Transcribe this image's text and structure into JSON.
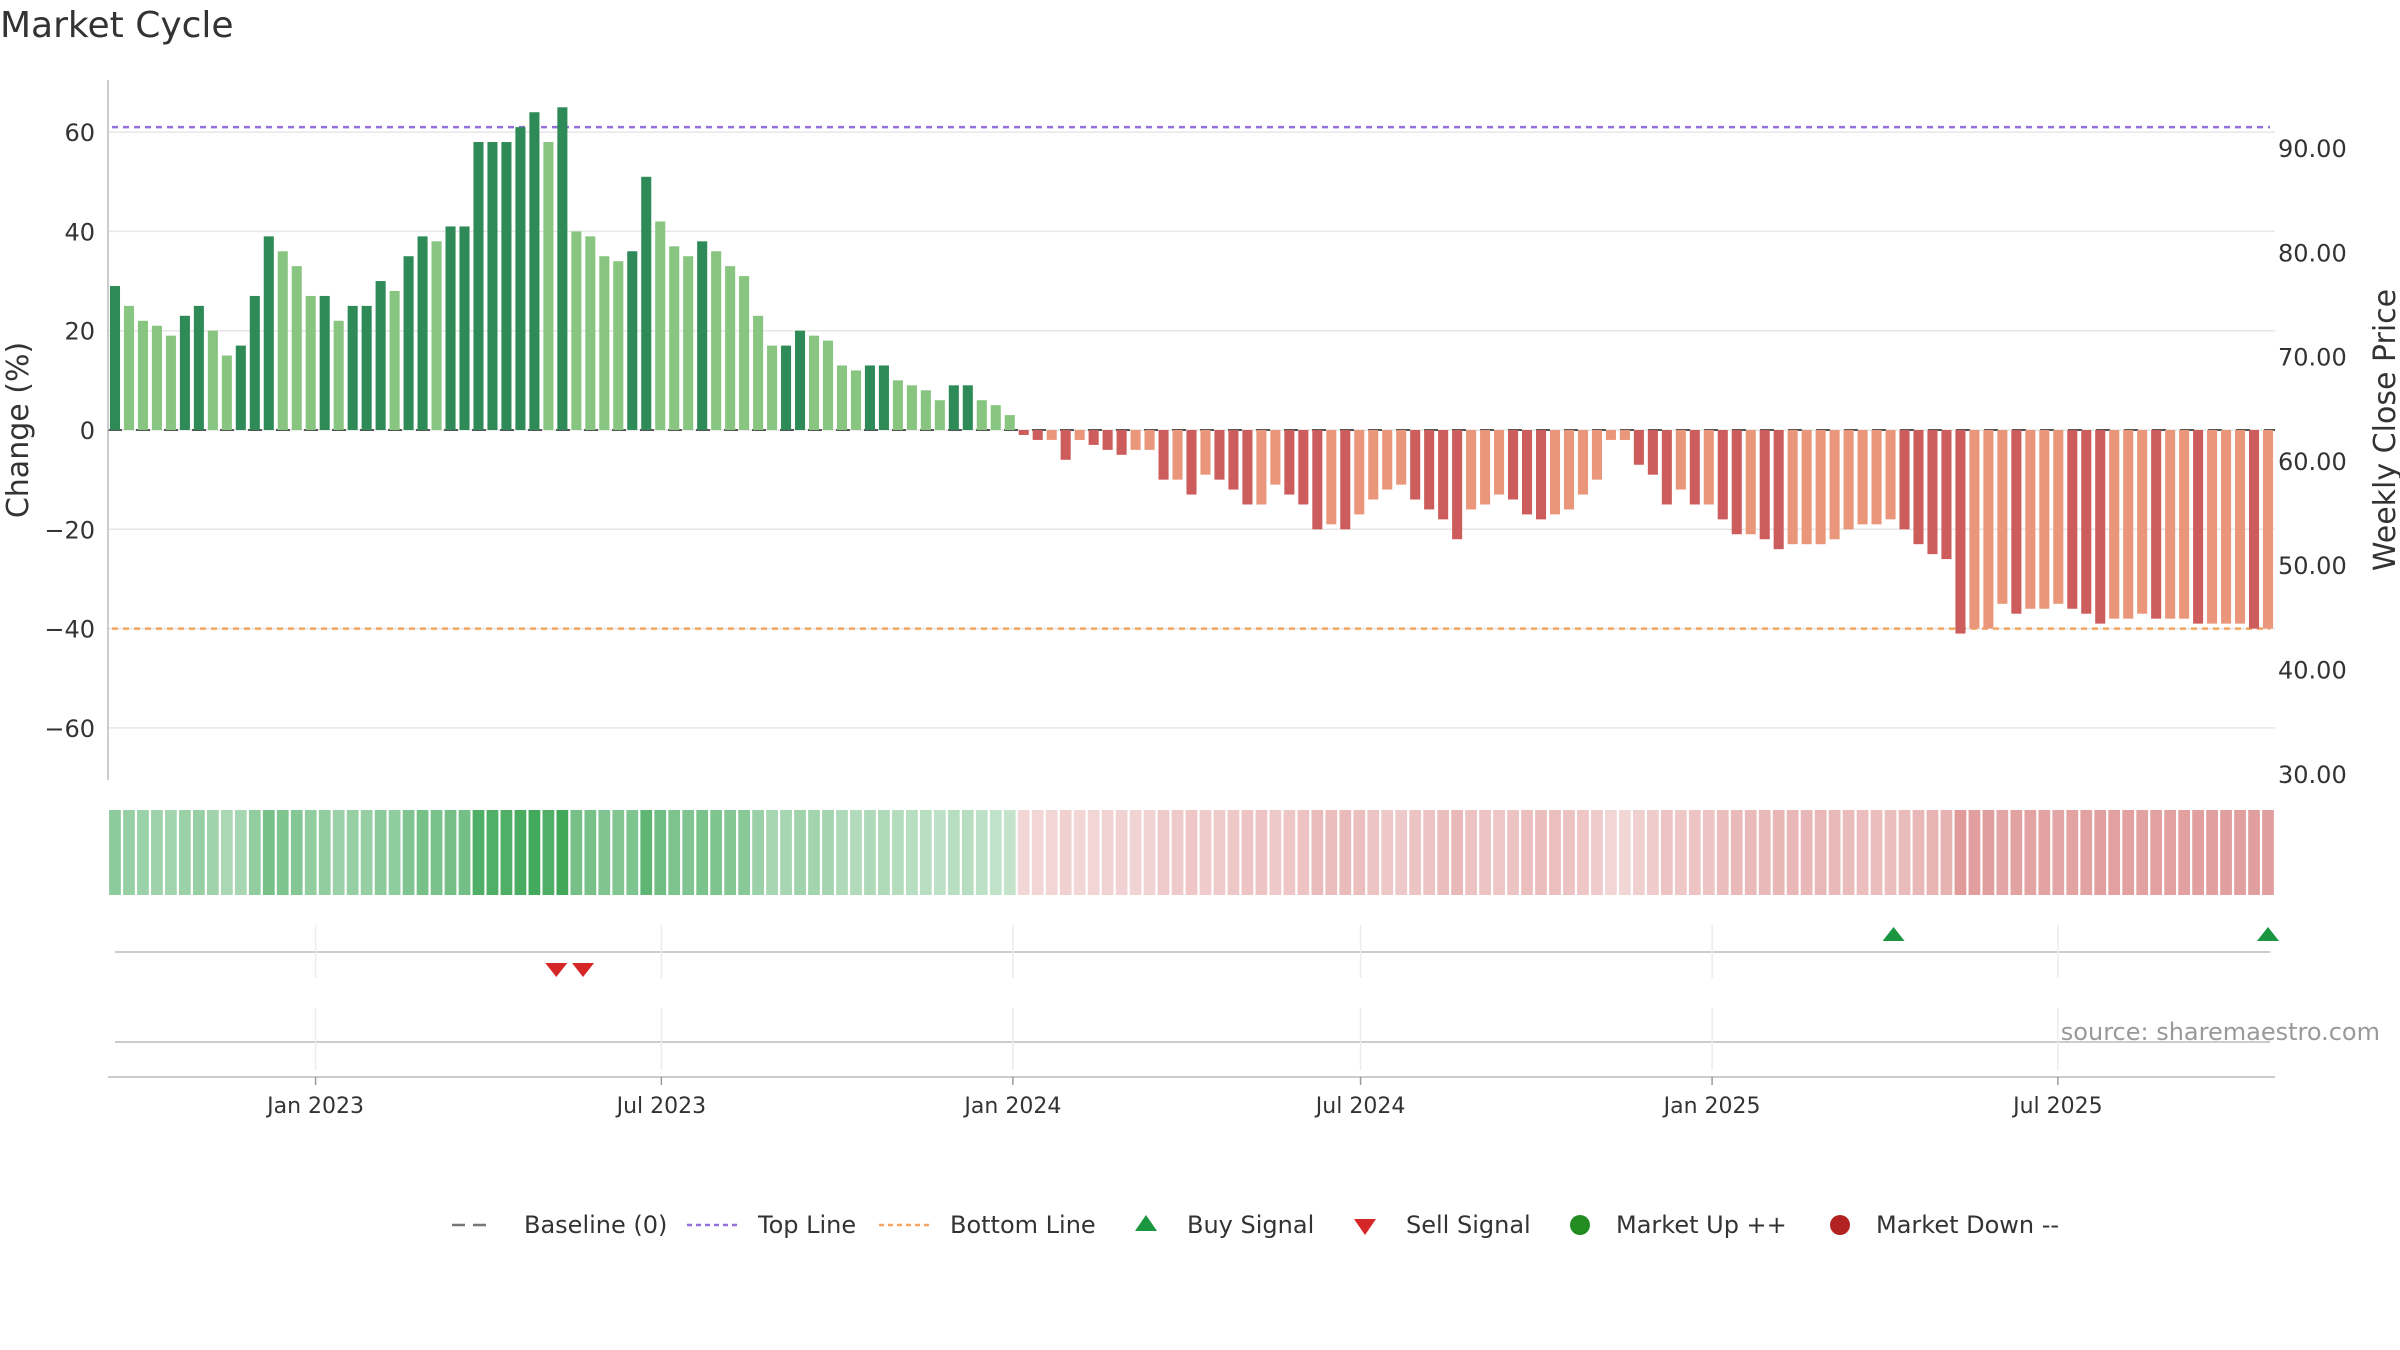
{
  "chart_data": {
    "type": "bar",
    "title": "Market Cycle",
    "ylabel": "Change (%)",
    "y2label": "Weekly Close Price",
    "ylim": [
      -70,
      70
    ],
    "y2lim": [
      30,
      96
    ],
    "yticks": [
      60,
      40,
      20,
      0,
      -20,
      -40,
      -60
    ],
    "ytick_labels": [
      "60",
      "40",
      "20",
      "0",
      "−20",
      "−40",
      "−60"
    ],
    "y2ticks": [
      90,
      80,
      70,
      60,
      50,
      40,
      30
    ],
    "y2tick_labels": [
      "90.00",
      "80.00",
      "70.00",
      "60.00",
      "50.00",
      "40.00",
      "30.00"
    ],
    "top_line": 61,
    "bottom_line": -40,
    "x_start": "2022-09-18",
    "x_end": "2025-10-19",
    "x_ticks": [
      {
        "date": "2023-01-01",
        "label": "Jan 2023"
      },
      {
        "date": "2023-07-01",
        "label": "Jul 2023"
      },
      {
        "date": "2024-01-01",
        "label": "Jan 2024"
      },
      {
        "date": "2024-07-01",
        "label": "Jul 2024"
      },
      {
        "date": "2025-01-01",
        "label": "Jan 2025"
      },
      {
        "date": "2025-07-01",
        "label": "Jul 2025"
      }
    ],
    "values": [
      29,
      25,
      22,
      21,
      19,
      23,
      25,
      20,
      15,
      17,
      27,
      39,
      36,
      33,
      27,
      27,
      22,
      25,
      25,
      30,
      28,
      35,
      39,
      38,
      41,
      41,
      58,
      58,
      58,
      61,
      64,
      58,
      65,
      40,
      39,
      35,
      34,
      36,
      51,
      42,
      37,
      35,
      38,
      36,
      33,
      31,
      23,
      17,
      17,
      20,
      19,
      18,
      13,
      12,
      13,
      13,
      10,
      9,
      8,
      6,
      9,
      9,
      6,
      5,
      3,
      -1,
      -2,
      -2,
      -6,
      -2,
      -3,
      -4,
      -5,
      -4,
      -4,
      -10,
      -10,
      -13,
      -9,
      -10,
      -12,
      -15,
      -15,
      -11,
      -13,
      -15,
      -20,
      -19,
      -20,
      -17,
      -14,
      -12,
      -11,
      -14,
      -16,
      -18,
      -22,
      -16,
      -15,
      -13,
      -14,
      -17,
      -18,
      -17,
      -16,
      -13,
      -10,
      -2,
      -2,
      -7,
      -9,
      -15,
      -12,
      -15,
      -15,
      -18,
      -21,
      -21,
      -22,
      -24,
      -23,
      -23,
      -23,
      -22,
      -20,
      -19,
      -19,
      -18,
      -20,
      -23,
      -25,
      -26,
      -41,
      -40,
      -40,
      -35,
      -37,
      -36,
      -36,
      -35,
      -36,
      -37,
      -39,
      -38,
      -38,
      -37,
      -38,
      -38,
      -38,
      -39,
      -39,
      -39,
      -39,
      -40,
      -40
    ],
    "legend": [
      {
        "label": "Baseline (0)",
        "symbol": "dash-line",
        "color": "#777777"
      },
      {
        "label": "Top Line",
        "symbol": "dot-line",
        "color": "#9370db"
      },
      {
        "label": "Bottom Line",
        "symbol": "dot-line",
        "color": "#f4a460"
      },
      {
        "label": "Buy Signal",
        "symbol": "triangle-up",
        "color": "#1a9641"
      },
      {
        "label": "Sell Signal",
        "symbol": "triangle-down",
        "color": "#d62728"
      },
      {
        "label": "Market Up ++",
        "symbol": "circle",
        "color": "#228b22"
      },
      {
        "label": "Market Down --",
        "symbol": "circle",
        "color": "#b22222"
      }
    ],
    "buy_signals": [
      "2025-04-06",
      "2025-10-19"
    ],
    "sell_signals": [
      "2023-05-07",
      "2023-05-21"
    ],
    "source": "source: sharemaestro.com",
    "colors": {
      "bar_pos_dark": "#2e8b57",
      "bar_pos_light": "#88c580",
      "bar_neg_dark": "#cd5c5c",
      "bar_neg_light": "#e9967a",
      "top_line": "#9370db",
      "bottom_line": "#f4a460",
      "heat_pos": "#41a85a",
      "heat_neg": "#c84b4b"
    }
  }
}
